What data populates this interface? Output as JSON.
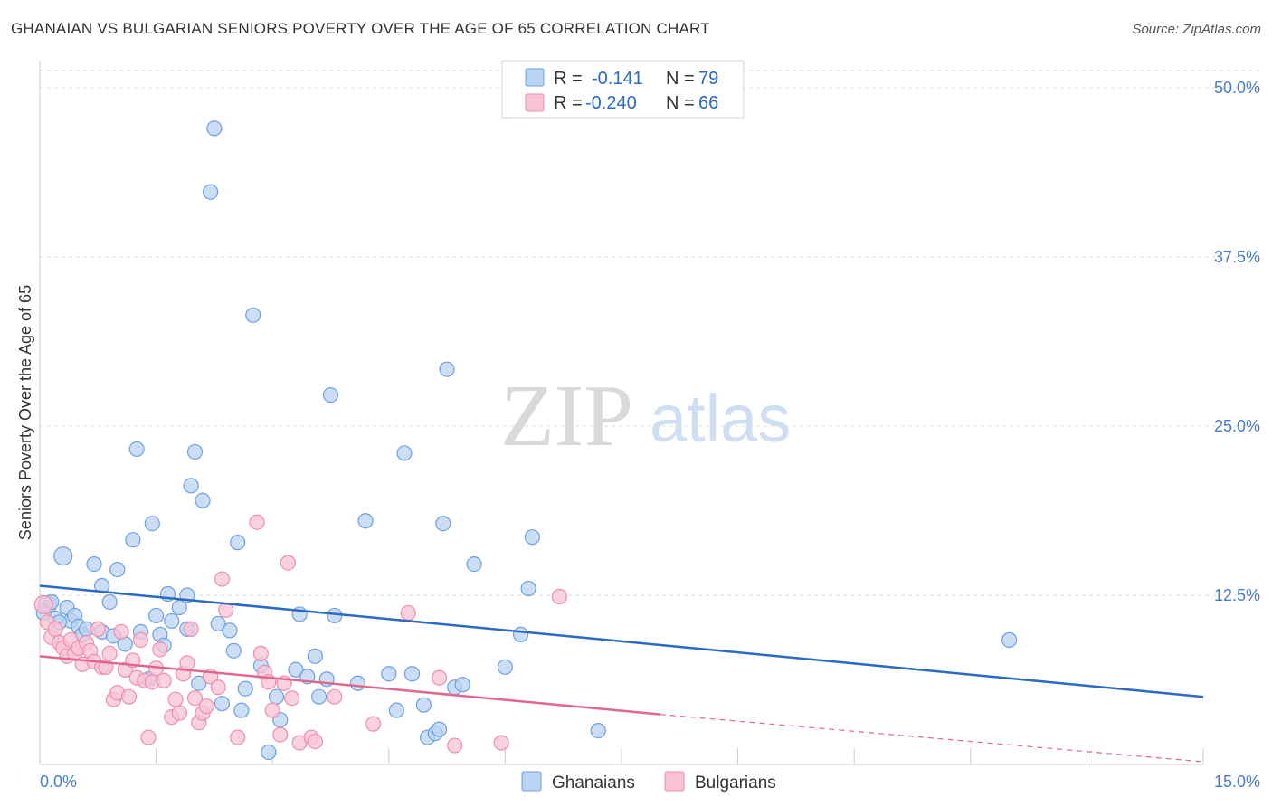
{
  "title": "GHANAIAN VS BULGARIAN SENIORS POVERTY OVER THE AGE OF 65 CORRELATION CHART",
  "source": "Source: ZipAtlas.com",
  "watermark": {
    "part1": "ZIP",
    "part2": "atlas"
  },
  "colors": {
    "ghanaian_fill": "#b9d3f2",
    "ghanaian_stroke": "#6fa0de",
    "ghanaian_line": "#2a6ac4",
    "bulgarian_fill": "#f8c3d4",
    "bulgarian_stroke": "#eb8fac",
    "bulgarian_line": "#e0688f",
    "tick_text": "#4a7cc7",
    "grid": "#dddddd"
  },
  "legend": {
    "items": [
      {
        "r_label": "R =",
        "r_value": "-0.141",
        "n_label": "N =",
        "n_value": "79"
      },
      {
        "r_label": "R =",
        "r_value": "-0.240",
        "n_label": "N =",
        "n_value": "66"
      }
    ]
  },
  "chart_data": {
    "type": "scatter",
    "title": "GHANAIAN VS BULGARIAN SENIORS POVERTY OVER THE AGE OF 65 CORRELATION CHART",
    "xlabel": "",
    "ylabel": "Seniors Poverty Over the Age of 65",
    "xlim": [
      0,
      15
    ],
    "ylim": [
      0,
      50
    ],
    "x_tick_labels": [
      "0.0%",
      "15.0%"
    ],
    "y_ticks": [
      12.5,
      25.0,
      37.5,
      50.0
    ],
    "y_tick_labels": [
      "12.5%",
      "25.0%",
      "37.5%",
      "50.0%"
    ],
    "grid": true,
    "legend_position": "top-center",
    "series": [
      {
        "name": "Ghanaians",
        "r": -0.141,
        "n": 79,
        "trend": {
          "x": [
            0,
            15
          ],
          "y": [
            13.2,
            5.0
          ]
        },
        "points": [
          [
            0.1,
            11.8
          ],
          [
            0.15,
            12.0
          ],
          [
            0.2,
            10.8
          ],
          [
            0.3,
            15.4
          ],
          [
            0.35,
            11.6
          ],
          [
            0.4,
            10.6
          ],
          [
            0.45,
            11.0
          ],
          [
            0.5,
            10.2
          ],
          [
            0.55,
            9.6
          ],
          [
            0.6,
            10.0
          ],
          [
            0.7,
            14.8
          ],
          [
            0.8,
            9.8
          ],
          [
            0.8,
            13.2
          ],
          [
            0.9,
            12.0
          ],
          [
            0.95,
            9.5
          ],
          [
            1.0,
            14.4
          ],
          [
            1.1,
            8.9
          ],
          [
            1.2,
            16.6
          ],
          [
            1.25,
            23.3
          ],
          [
            1.3,
            9.8
          ],
          [
            1.4,
            6.3
          ],
          [
            1.45,
            17.8
          ],
          [
            1.5,
            11.0
          ],
          [
            1.55,
            9.6
          ],
          [
            1.6,
            8.8
          ],
          [
            1.65,
            12.6
          ],
          [
            1.7,
            10.6
          ],
          [
            1.8,
            11.6
          ],
          [
            1.9,
            12.5
          ],
          [
            1.9,
            10.0
          ],
          [
            1.95,
            20.6
          ],
          [
            2.0,
            23.1
          ],
          [
            2.05,
            6.0
          ],
          [
            2.1,
            19.5
          ],
          [
            2.25,
            47.0
          ],
          [
            2.2,
            42.3
          ],
          [
            2.3,
            10.4
          ],
          [
            2.35,
            4.5
          ],
          [
            2.45,
            9.9
          ],
          [
            2.5,
            8.4
          ],
          [
            2.55,
            16.4
          ],
          [
            2.6,
            4.0
          ],
          [
            2.65,
            5.6
          ],
          [
            2.75,
            33.2
          ],
          [
            2.85,
            7.3
          ],
          [
            2.95,
            0.9
          ],
          [
            3.05,
            5.0
          ],
          [
            3.1,
            3.3
          ],
          [
            3.3,
            7.0
          ],
          [
            3.35,
            11.1
          ],
          [
            3.45,
            6.5
          ],
          [
            3.55,
            8.0
          ],
          [
            3.6,
            5.0
          ],
          [
            3.7,
            6.3
          ],
          [
            3.75,
            27.3
          ],
          [
            3.8,
            11.0
          ],
          [
            4.1,
            6.0
          ],
          [
            4.2,
            18.0
          ],
          [
            4.5,
            6.7
          ],
          [
            4.6,
            4.0
          ],
          [
            4.7,
            23.0
          ],
          [
            4.8,
            6.7
          ],
          [
            4.95,
            4.4
          ],
          [
            5.0,
            2.0
          ],
          [
            5.1,
            2.3
          ],
          [
            5.15,
            2.6
          ],
          [
            5.2,
            17.8
          ],
          [
            5.25,
            29.2
          ],
          [
            5.35,
            5.7
          ],
          [
            5.45,
            5.9
          ],
          [
            5.6,
            14.8
          ],
          [
            6.0,
            7.2
          ],
          [
            6.2,
            9.6
          ],
          [
            6.3,
            13.0
          ],
          [
            6.35,
            16.8
          ],
          [
            7.2,
            2.5
          ],
          [
            12.5,
            9.2
          ],
          [
            0.05,
            11.2
          ],
          [
            0.25,
            10.5
          ]
        ]
      },
      {
        "name": "Bulgarians",
        "r": -0.24,
        "n": 66,
        "trend": {
          "x": [
            0,
            8.0
          ],
          "y": [
            8.0,
            3.7
          ]
        },
        "trend_dashed": {
          "x": [
            8.0,
            15.0
          ],
          "y": [
            3.7,
            0.2
          ]
        },
        "points": [
          [
            0.05,
            11.8
          ],
          [
            0.1,
            10.5
          ],
          [
            0.15,
            9.4
          ],
          [
            0.2,
            10.0
          ],
          [
            0.25,
            9.0
          ],
          [
            0.3,
            8.6
          ],
          [
            0.35,
            8.0
          ],
          [
            0.4,
            9.2
          ],
          [
            0.45,
            8.2
          ],
          [
            0.5,
            8.6
          ],
          [
            0.55,
            7.4
          ],
          [
            0.6,
            9.0
          ],
          [
            0.65,
            8.4
          ],
          [
            0.7,
            7.6
          ],
          [
            0.75,
            10.0
          ],
          [
            0.8,
            7.2
          ],
          [
            0.85,
            7.2
          ],
          [
            0.9,
            8.2
          ],
          [
            0.95,
            4.8
          ],
          [
            1.0,
            5.3
          ],
          [
            1.05,
            9.8
          ],
          [
            1.1,
            7.0
          ],
          [
            1.15,
            5.0
          ],
          [
            1.2,
            7.7
          ],
          [
            1.25,
            6.4
          ],
          [
            1.3,
            9.2
          ],
          [
            1.35,
            6.2
          ],
          [
            1.4,
            2.0
          ],
          [
            1.45,
            6.1
          ],
          [
            1.5,
            7.1
          ],
          [
            1.55,
            8.5
          ],
          [
            1.6,
            6.2
          ],
          [
            1.7,
            3.5
          ],
          [
            1.75,
            4.8
          ],
          [
            1.8,
            3.8
          ],
          [
            1.85,
            6.7
          ],
          [
            1.9,
            7.5
          ],
          [
            1.95,
            10.0
          ],
          [
            2.0,
            4.9
          ],
          [
            2.05,
            3.1
          ],
          [
            2.1,
            3.8
          ],
          [
            2.15,
            4.3
          ],
          [
            2.2,
            6.5
          ],
          [
            2.3,
            5.7
          ],
          [
            2.35,
            13.7
          ],
          [
            2.4,
            11.4
          ],
          [
            2.55,
            2.0
          ],
          [
            2.8,
            17.9
          ],
          [
            2.85,
            8.2
          ],
          [
            2.9,
            6.8
          ],
          [
            2.95,
            6.1
          ],
          [
            3.0,
            4.0
          ],
          [
            3.1,
            2.2
          ],
          [
            3.15,
            6.0
          ],
          [
            3.2,
            14.9
          ],
          [
            3.25,
            4.9
          ],
          [
            3.35,
            1.6
          ],
          [
            3.5,
            2.0
          ],
          [
            3.55,
            1.7
          ],
          [
            3.8,
            5.0
          ],
          [
            4.3,
            3.0
          ],
          [
            4.75,
            11.2
          ],
          [
            5.15,
            6.4
          ],
          [
            5.35,
            1.4
          ],
          [
            5.95,
            1.6
          ],
          [
            6.7,
            12.4
          ]
        ]
      }
    ]
  },
  "bottom_legend": {
    "items": [
      "Ghanaians",
      "Bulgarians"
    ]
  }
}
